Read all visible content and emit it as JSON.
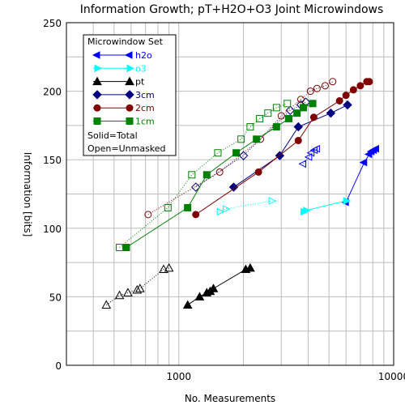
{
  "chart_data": {
    "type": "line",
    "title": "Information Growth; pT+H2O+O3 Joint Microwindows",
    "xlabel": "No. Measurements",
    "ylabel": "Information [bits]",
    "xscale": "log",
    "xlim": [
      300,
      10000
    ],
    "ylim": [
      0,
      250
    ],
    "xticks": [
      "1000",
      "10000"
    ],
    "yticks": [
      "0",
      "50",
      "100",
      "150",
      "200",
      "250"
    ],
    "grid": true,
    "legend": {
      "title": "Microwindow Set",
      "placement": "top-left",
      "notes": [
        "Solid=Total",
        "Open=Unmasked"
      ]
    },
    "series": [
      {
        "name": "h2o",
        "color": "#0000ff",
        "marker": "leftarrow",
        "total": [
          [
            6000,
            119
          ],
          [
            7300,
            148
          ],
          [
            7700,
            154
          ],
          [
            7900,
            156
          ],
          [
            8100,
            157
          ],
          [
            8300,
            158
          ]
        ],
        "unmasked": [
          [
            3800,
            147
          ],
          [
            4050,
            152
          ],
          [
            4150,
            155
          ],
          [
            4300,
            157
          ],
          [
            4400,
            158
          ]
        ]
      },
      {
        "name": "o3",
        "color": "#00ffff",
        "marker": "rightarrow",
        "total": [
          [
            3800,
            112
          ],
          [
            3900,
            113
          ],
          [
            6000,
            120
          ]
        ],
        "unmasked": [
          [
            1550,
            112
          ],
          [
            1650,
            114
          ],
          [
            2700,
            120
          ]
        ]
      },
      {
        "name": "pt",
        "color": "#000000",
        "marker": "triangle",
        "total": [
          [
            1100,
            44
          ],
          [
            1250,
            50
          ],
          [
            1350,
            53
          ],
          [
            1400,
            54
          ],
          [
            1450,
            56
          ],
          [
            2050,
            70
          ],
          [
            2150,
            71
          ]
        ],
        "unmasked": [
          [
            460,
            44
          ],
          [
            530,
            51
          ],
          [
            580,
            53
          ],
          [
            640,
            55
          ],
          [
            660,
            56
          ],
          [
            850,
            70
          ],
          [
            900,
            71
          ]
        ]
      },
      {
        "name": "3cm",
        "color": "#000080",
        "marker": "diamond",
        "total": [
          [
            1800,
            130
          ],
          [
            2950,
            153
          ],
          [
            3600,
            174
          ],
          [
            5100,
            184
          ],
          [
            6100,
            190
          ]
        ],
        "unmasked": [
          [
            1200,
            130
          ],
          [
            2000,
            153
          ],
          [
            3300,
            186
          ],
          [
            3700,
            190
          ],
          [
            3900,
            192
          ]
        ]
      },
      {
        "name": "2cm",
        "color": "#800000",
        "marker": "circle",
        "total": [
          [
            1200,
            110
          ],
          [
            2350,
            141
          ],
          [
            3600,
            164
          ],
          [
            4250,
            181
          ],
          [
            5600,
            193
          ],
          [
            6000,
            197
          ],
          [
            6500,
            201
          ],
          [
            7000,
            204
          ],
          [
            7500,
            207
          ],
          [
            7700,
            207
          ]
        ],
        "unmasked": [
          [
            720,
            110
          ],
          [
            1550,
            141
          ],
          [
            2400,
            165
          ],
          [
            3000,
            182
          ],
          [
            3700,
            194
          ],
          [
            4100,
            200
          ],
          [
            4400,
            202
          ],
          [
            4800,
            204
          ],
          [
            5200,
            207
          ]
        ]
      },
      {
        "name": "1cm",
        "color": "#008000",
        "marker": "square",
        "total": [
          [
            570,
            86
          ],
          [
            1100,
            115
          ],
          [
            1350,
            139
          ],
          [
            1850,
            155
          ],
          [
            2300,
            165
          ],
          [
            2850,
            174
          ],
          [
            3250,
            180
          ],
          [
            3550,
            184
          ],
          [
            3800,
            188
          ],
          [
            4200,
            191
          ]
        ],
        "unmasked": [
          [
            530,
            86
          ],
          [
            890,
            115
          ],
          [
            1150,
            139
          ],
          [
            1520,
            155
          ],
          [
            1950,
            165
          ],
          [
            2150,
            174
          ],
          [
            2380,
            180
          ],
          [
            2600,
            184
          ],
          [
            2850,
            188
          ],
          [
            3200,
            191
          ]
        ]
      }
    ]
  }
}
